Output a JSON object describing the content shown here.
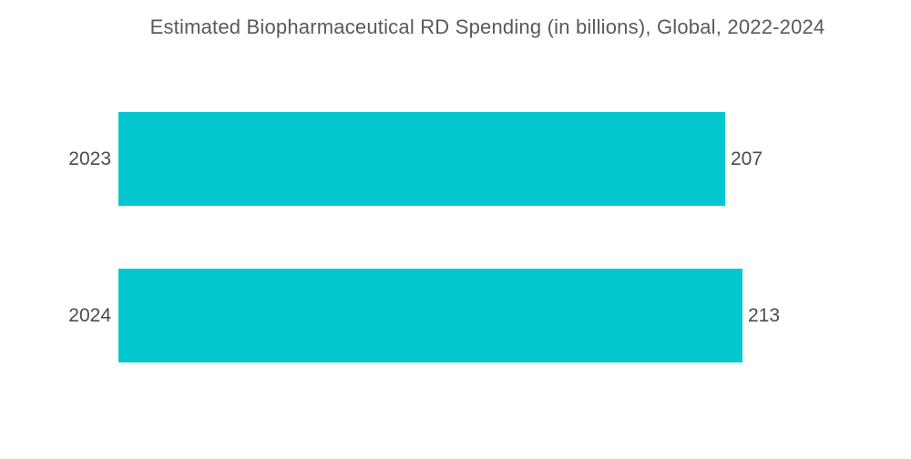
{
  "chart_data": {
    "type": "bar",
    "orientation": "horizontal",
    "title": "Estimated Biopharmaceutical RD Spending (in billions), Global, 2022-2024",
    "categories": [
      "2023",
      "2024"
    ],
    "values": [
      207,
      213
    ],
    "value_labels": [
      "207",
      "213"
    ],
    "xlim": [
      0,
      213
    ],
    "grid": false,
    "legend": false,
    "value_label_position": "outside-end",
    "colors": {
      "bar": "#04C6CE",
      "title_text": "#58595B",
      "axis_text": "#4C4C4E",
      "background": "#FFFFFF"
    }
  }
}
